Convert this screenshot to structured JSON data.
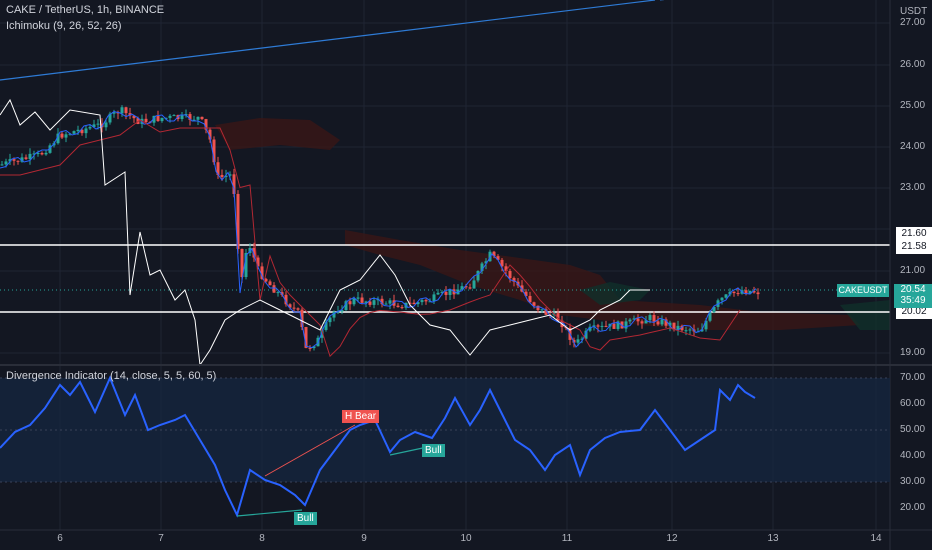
{
  "header": {
    "symbol_line": "CAKE / TetherUS, 1h, BINANCE",
    "indicator_line": "Ichimoku (9, 26, 52, 26)",
    "currency": "USDT"
  },
  "price_axis": {
    "labels": [
      "27.00",
      "26.00",
      "25.00",
      "24.00",
      "23.00",
      "21.00",
      "19.00"
    ],
    "level_tags": [
      "21.60",
      "21.58",
      "20.02"
    ],
    "current_symbol": "CAKEUSDT",
    "current_price": "20.54",
    "countdown": "35:49"
  },
  "time_axis": {
    "labels": [
      "6",
      "7",
      "8",
      "9",
      "10",
      "11",
      "12",
      "13",
      "14"
    ]
  },
  "divergence": {
    "title": "Divergence Indicator (14, close, 5, 5, 60, 5)",
    "labels": [
      "70.00",
      "60.00",
      "50.00",
      "40.00",
      "30.00",
      "20.00"
    ],
    "markers": {
      "h_bear": "H Bear",
      "bull": "Bull"
    }
  },
  "colors": {
    "background": "#131722",
    "bull_candle": "#26a69a",
    "bear_candle": "#ef5350",
    "rsi_line": "#2962ff",
    "kumo_bear": "#4a1818",
    "kumo_bull": "#113322"
  }
}
